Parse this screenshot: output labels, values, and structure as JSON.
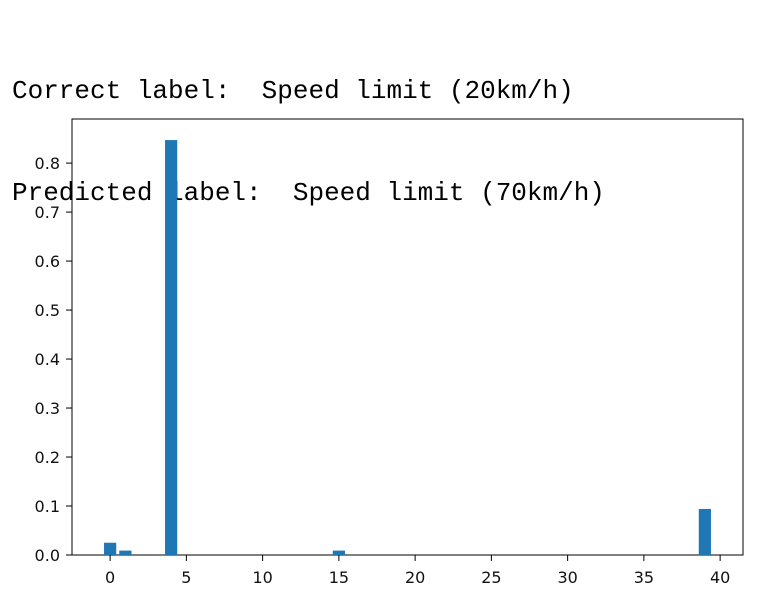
{
  "labels": {
    "correct_prefix": "Correct label:",
    "correct_value": "Speed limit (20km/h)",
    "predicted_prefix": "Predicted label:",
    "predicted_value": "Speed limit (70km/h)"
  },
  "chart_data": {
    "type": "bar",
    "title": "",
    "xlabel": "",
    "ylabel": "",
    "xlim": [
      -2.5,
      41.5
    ],
    "ylim": [
      0,
      0.89
    ],
    "xticks": [
      0,
      5,
      10,
      15,
      20,
      25,
      30,
      35,
      40
    ],
    "yticks": [
      0.0,
      0.1,
      0.2,
      0.3,
      0.4,
      0.5,
      0.6,
      0.7,
      0.8
    ],
    "ytick_labels": [
      "0.0",
      "0.1",
      "0.2",
      "0.3",
      "0.4",
      "0.5",
      "0.6",
      "0.7",
      "0.8"
    ],
    "x": [
      0,
      1,
      4,
      15,
      39
    ],
    "values": [
      0.025,
      0.009,
      0.847,
      0.009,
      0.094
    ],
    "bar_color": "#1f77b4",
    "grid": false
  }
}
